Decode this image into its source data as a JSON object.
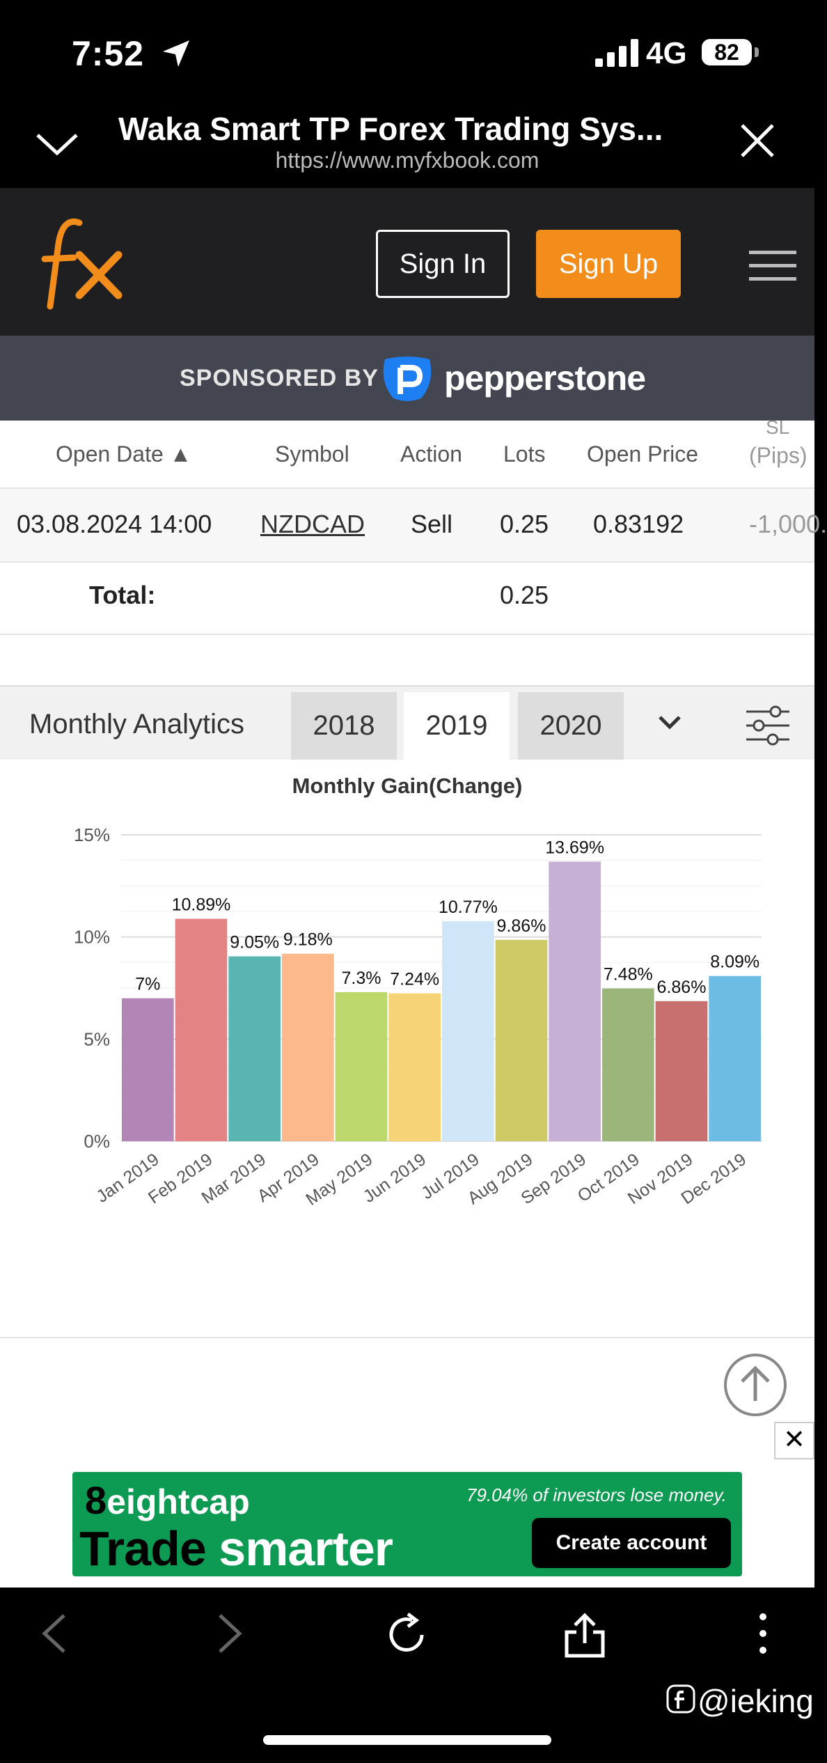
{
  "status_bar": {
    "time": "7:52",
    "network": "4G",
    "battery": "82"
  },
  "browser": {
    "title": "Waka Smart TP Forex Trading Sys...",
    "url": "https://www.myfxbook.com"
  },
  "site_header": {
    "logo_text": "fx",
    "sign_in_label": "Sign In",
    "sign_up_label": "Sign Up",
    "accent_color": "#f28c1b"
  },
  "sponsor": {
    "label": "SPONSORED BY",
    "brand": "pepperstone"
  },
  "trades_table": {
    "headers": [
      "Open Date",
      "Symbol",
      "Action",
      "Lots",
      "Open Price",
      "SL",
      "(Pips)"
    ],
    "row": {
      "open_date": "03.08.2024 14:00",
      "symbol": "NZDCAD",
      "action": "Sell",
      "lots": "0.25",
      "open_price": "0.83192",
      "sl": "-1,000."
    },
    "total_label": "Total:",
    "total_lots": "0.25"
  },
  "analytics": {
    "title": "Monthly Analytics",
    "years": [
      "2018",
      "2019",
      "2020"
    ],
    "selected_year": "2019"
  },
  "chart_data": {
    "type": "bar",
    "title": "Monthly Gain(Change)",
    "categories": [
      "Jan 2019",
      "Feb 2019",
      "Mar 2019",
      "Apr 2019",
      "May 2019",
      "Jun 2019",
      "Jul 2019",
      "Aug 2019",
      "Sep 2019",
      "Oct 2019",
      "Nov 2019",
      "Dec 2019"
    ],
    "values": [
      7,
      10.89,
      9.05,
      9.18,
      7.3,
      7.24,
      10.77,
      9.86,
      13.69,
      7.48,
      6.86,
      8.09
    ],
    "labels": [
      "7%",
      "10.89%",
      "9.05%",
      "9.18%",
      "7.3%",
      "7.24%",
      "10.77%",
      "9.86%",
      "13.69%",
      "7.48%",
      "6.86%",
      "8.09%"
    ],
    "colors": [
      "#b384b6",
      "#e48383",
      "#58b5b2",
      "#fcb98b",
      "#bcd76a",
      "#f5d376",
      "#cfe5f8",
      "#cfc966",
      "#c7b0d6",
      "#9cb57a",
      "#c86f70",
      "#6cbce4"
    ],
    "yticks": [
      "0%",
      "5%",
      "10%",
      "15%"
    ],
    "ylim": [
      0,
      15
    ],
    "grid": true
  },
  "ad": {
    "brand_num": "8",
    "brand": "eightcap",
    "risk": "79.04% of investors lose money.",
    "tagline_1": "Trade",
    "tagline_2": "smarter",
    "cta": "Create account"
  },
  "watermark": "@ieking"
}
